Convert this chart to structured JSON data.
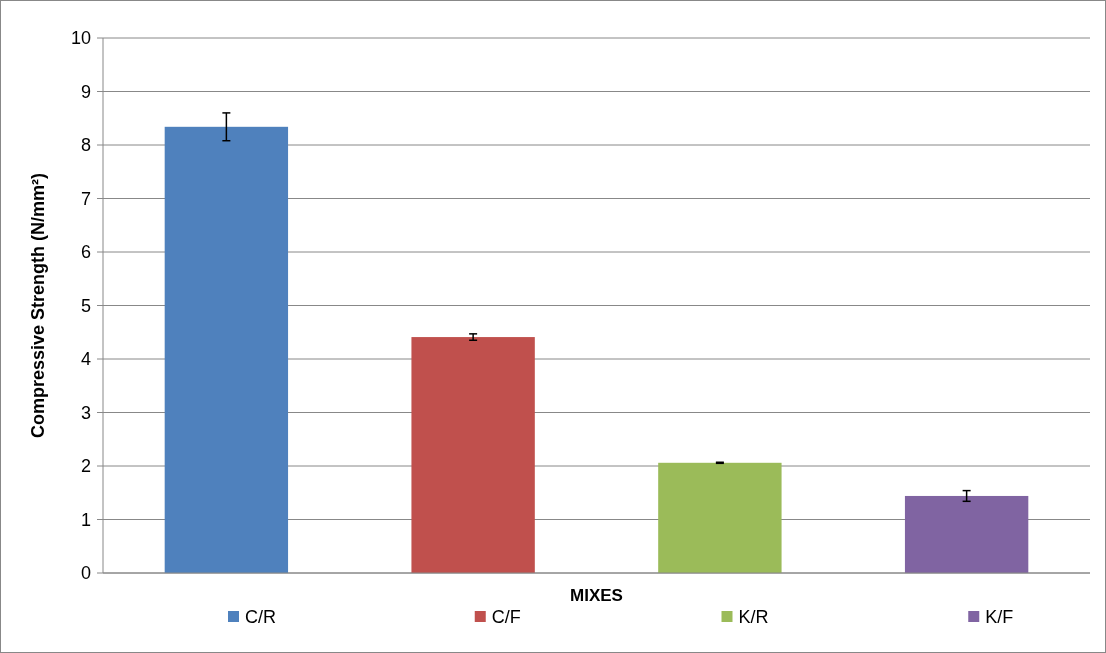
{
  "chart_data": {
    "type": "bar",
    "xlabel": "MIXES",
    "ylabel": "Compressive Strength (N/mm²)",
    "categories": [
      null,
      null,
      null,
      null
    ],
    "series": [
      {
        "name": "C/R",
        "color": "#4f81bd",
        "values": [
          8.34,
          null,
          null,
          null
        ],
        "errors": [
          0.26,
          null,
          null,
          null
        ]
      },
      {
        "name": "C/F",
        "color": "#c0504d",
        "values": [
          null,
          4.41,
          null,
          null
        ],
        "errors": [
          null,
          0.06,
          null,
          null
        ]
      },
      {
        "name": "K/R",
        "color": "#9bbb59",
        "values": [
          null,
          null,
          2.06,
          null
        ],
        "errors": [
          null,
          null,
          0.01,
          null
        ]
      },
      {
        "name": "K/F",
        "color": "#8064a2",
        "values": [
          null,
          null,
          null,
          1.44
        ],
        "errors": [
          null,
          null,
          null,
          0.1
        ]
      }
    ],
    "ylim": [
      0,
      10
    ],
    "yticks": [
      0,
      1,
      2,
      3,
      4,
      5,
      6,
      7,
      8,
      9,
      10
    ],
    "grid": "y",
    "legend": "bottom"
  }
}
